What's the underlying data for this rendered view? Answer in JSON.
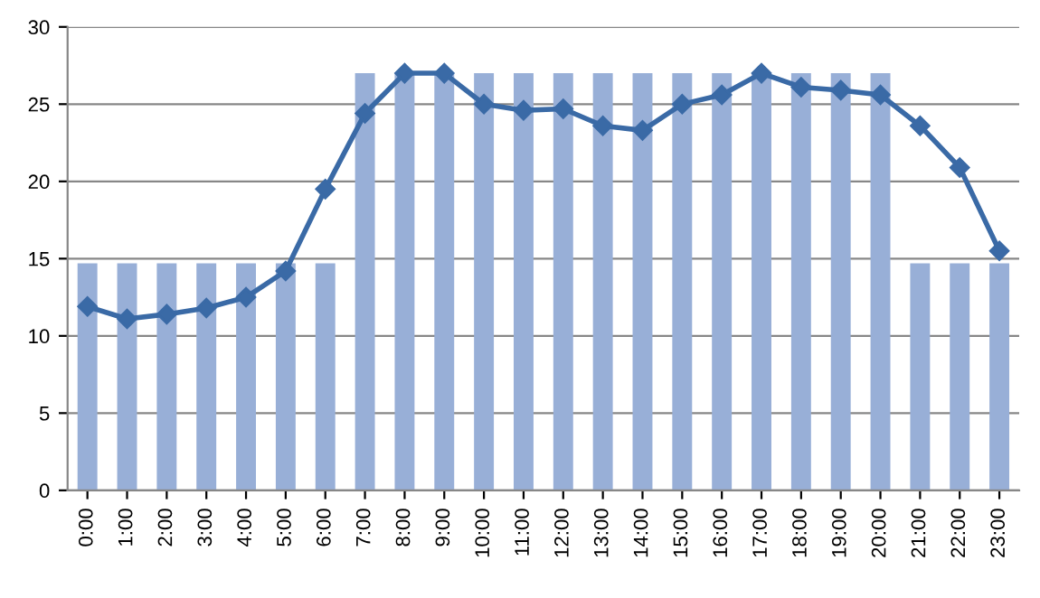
{
  "chart_data": {
    "type": "bar",
    "categories": [
      "0:00",
      "1:00",
      "2:00",
      "3:00",
      "4:00",
      "5:00",
      "6:00",
      "7:00",
      "8:00",
      "9:00",
      "10:00",
      "11:00",
      "12:00",
      "13:00",
      "14:00",
      "15:00",
      "16:00",
      "17:00",
      "18:00",
      "19:00",
      "20:00",
      "21:00",
      "22:00",
      "23:00"
    ],
    "series": [
      {
        "color": "#98afd7",
        "values": [
          14.7,
          14.7,
          14.7,
          14.7,
          14.7,
          14.7,
          14.7,
          27,
          27,
          27,
          27,
          27,
          27,
          27,
          27,
          27,
          27,
          27,
          27,
          27,
          27,
          14.7,
          14.7,
          14.7
        ]
      },
      {
        "type": "line",
        "color": "#3a6aa6",
        "marker": "diamond",
        "values": [
          11.9,
          11.1,
          11.4,
          11.8,
          12.5,
          14.2,
          19.5,
          24.4,
          27.0,
          27.0,
          25.0,
          24.6,
          24.7,
          23.6,
          23.3,
          25.0,
          25.6,
          27.0,
          26.1,
          25.9,
          25.6,
          23.6,
          20.9,
          15.5
        ]
      }
    ],
    "ylim": [
      0,
      30
    ],
    "yticks": [
      0,
      5,
      10,
      15,
      20,
      25,
      30
    ],
    "grid": "y"
  }
}
